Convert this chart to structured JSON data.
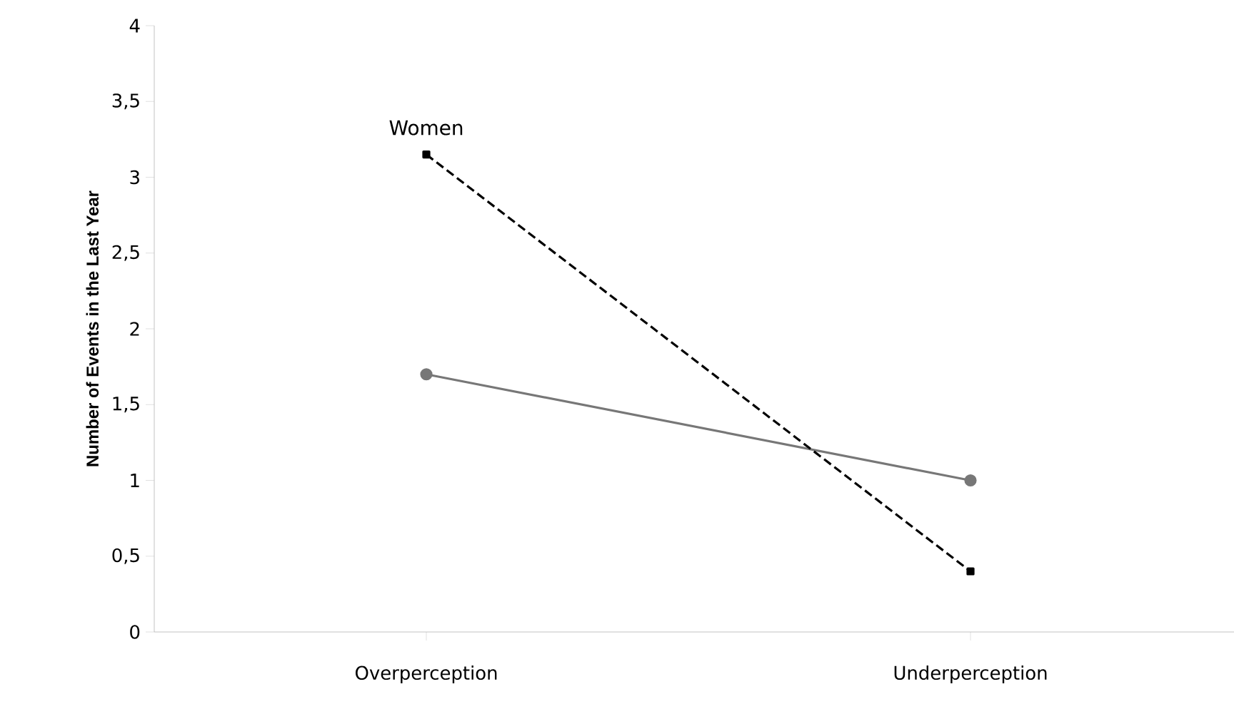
{
  "chart_data": {
    "type": "line",
    "ylabel": "Number of Events in the Last Year",
    "categories": [
      "Overperception",
      "Underperception"
    ],
    "series": [
      {
        "color": "#777777",
        "values": [
          1.7,
          1.0
        ],
        "marker": "circle",
        "line_style": "solid"
      },
      {
        "name": "Women",
        "color": "#000000",
        "values": [
          3.15,
          0.4
        ],
        "marker": "square",
        "line_style": "dashed"
      }
    ],
    "ylim": [
      0,
      4
    ],
    "yticks": [
      0,
      {
        "value": 0.5,
        "label": "0,5"
      },
      1,
      {
        "value": 1.5,
        "label": "1,5"
      },
      2,
      {
        "value": 2.5,
        "label": "2,5"
      },
      3,
      {
        "value": 3.5,
        "label": "3,5"
      },
      4
    ],
    "grid": false
  }
}
